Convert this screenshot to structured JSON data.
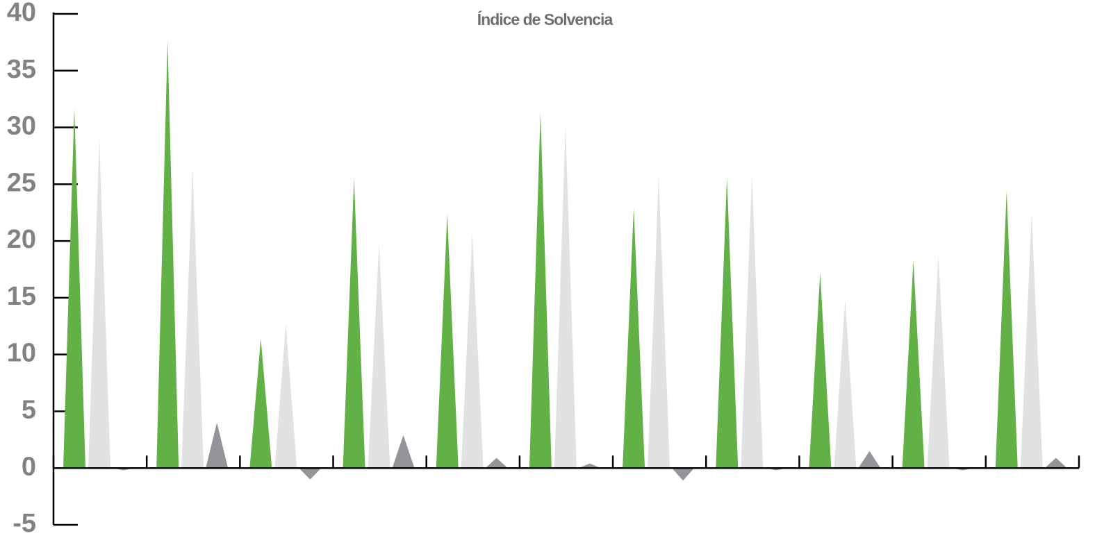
{
  "chart_data": {
    "type": "bar",
    "shape": "triangle",
    "title": "Índice de Solvencia",
    "categories": [
      null,
      null,
      null,
      null,
      null,
      null,
      null,
      null,
      null,
      null,
      null
    ],
    "series": [
      {
        "color": "#62b146",
        "values": [
          31.7,
          37.7,
          11.4,
          25.5,
          22.4,
          31.3,
          22.9,
          25.6,
          17.2,
          18.3,
          24.4
        ]
      },
      {
        "color": "#e1e2e3",
        "values": [
          29.0,
          26.5,
          12.7,
          19.8,
          20.7,
          30.2,
          25.8,
          25.8,
          14.9,
          18.8,
          22.4
        ]
      },
      {
        "color": "#939598",
        "values": [
          -0.2,
          4.0,
          -1.0,
          2.9,
          0.9,
          0.4,
          -1.1,
          -0.2,
          1.5,
          -0.2,
          0.9
        ]
      }
    ],
    "ylim": [
      -5,
      40
    ],
    "yticks": [
      -5,
      0,
      5,
      10,
      15,
      20,
      25,
      30,
      35,
      40
    ]
  }
}
